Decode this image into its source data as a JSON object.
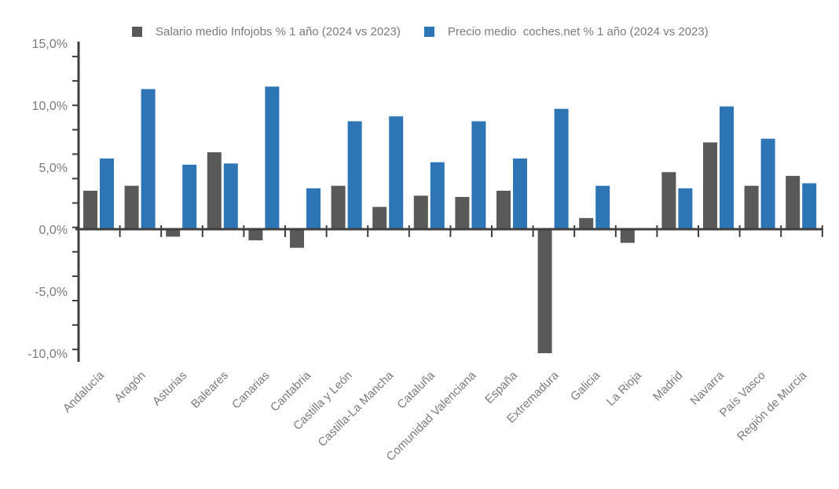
{
  "chart_data": {
    "type": "bar",
    "title": "",
    "xlabel": "",
    "ylabel": "",
    "ylim": [
      -10,
      15
    ],
    "grid": false,
    "legend_position": "top",
    "ytick_labels": [
      "15,0%",
      "10,0%",
      "5,0%",
      "0,0%",
      "-5,0%",
      "-10,0%"
    ],
    "ytick_values": [
      15,
      10,
      5,
      0,
      -5,
      -10
    ],
    "categories": [
      "Andalucía",
      "Aragón",
      "Asturias",
      "Baleares",
      "Canarias",
      "Cantabria",
      "Castilla y León",
      "Castilla-La Mancha",
      "Cataluña",
      "Comunidad Valenciana",
      "España",
      "Extremadura",
      "Galicia",
      "La Rioja",
      "Madrid",
      "Navarra",
      "País Vasco",
      "Región de Murcia"
    ],
    "series": [
      {
        "name": "Salario medio Infojobs % 1 año (2024 vs 2023)",
        "key": "salario",
        "color": "#595959",
        "values": [
          3.1,
          3.5,
          -0.6,
          6.2,
          -0.9,
          -1.5,
          3.5,
          1.8,
          2.7,
          2.6,
          3.1,
          -10.0,
          0.9,
          -1.1,
          4.6,
          7.0,
          3.5,
          4.3
        ]
      },
      {
        "name": "Precio medio  coches.net % 1 año (2024 vs 2023)",
        "key": "precio",
        "color": "#2E75B6",
        "values": [
          5.7,
          11.3,
          5.2,
          5.3,
          11.5,
          3.3,
          8.7,
          9.1,
          5.4,
          8.7,
          5.7,
          9.7,
          3.5,
          null,
          3.3,
          9.9,
          7.3,
          3.7
        ]
      }
    ]
  },
  "colors": {
    "axis": "#3f3f3f",
    "text": "#7b7b7b",
    "background": "#ffffff"
  }
}
